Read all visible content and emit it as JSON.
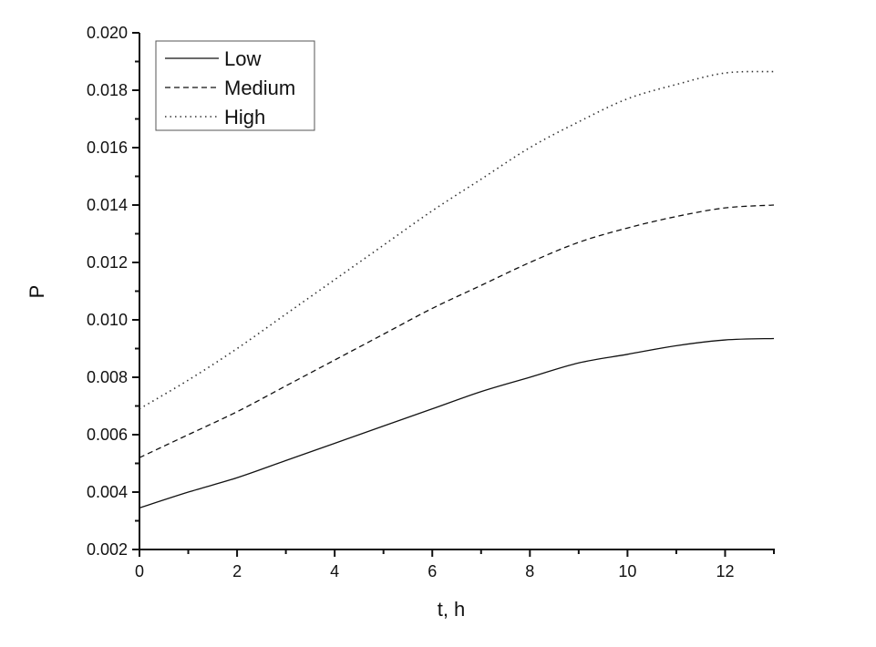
{
  "chart_data": {
    "type": "line",
    "title": "",
    "xlabel": "t, h",
    "ylabel": "P",
    "xlim": [
      0,
      13
    ],
    "ylim": [
      0.002,
      0.02
    ],
    "x_ticks": [
      0,
      2,
      4,
      6,
      8,
      10,
      12
    ],
    "x_tick_labels": [
      "0",
      "2",
      "4",
      "6",
      "8",
      "10",
      "12"
    ],
    "y_ticks": [
      0.002,
      0.004,
      0.006,
      0.008,
      0.01,
      0.012,
      0.014,
      0.016,
      0.018,
      0.02
    ],
    "y_tick_labels": [
      "0.002",
      "0.004",
      "0.006",
      "0.008",
      "0.010",
      "0.012",
      "0.014",
      "0.016",
      "0.018",
      "0.020"
    ],
    "grid": false,
    "legend_position": "upper left",
    "x": [
      0,
      1,
      2,
      3,
      4,
      5,
      6,
      7,
      8,
      9,
      10,
      11,
      12,
      13
    ],
    "series": [
      {
        "name": "Low",
        "style": "solid",
        "values": [
          0.00345,
          0.004,
          0.0045,
          0.0051,
          0.0057,
          0.0063,
          0.0069,
          0.0075,
          0.008,
          0.0085,
          0.0088,
          0.0091,
          0.0093,
          0.00935
        ]
      },
      {
        "name": "Medium",
        "style": "dashed",
        "values": [
          0.0052,
          0.006,
          0.0068,
          0.0077,
          0.0086,
          0.0095,
          0.0104,
          0.0112,
          0.012,
          0.0127,
          0.0132,
          0.0136,
          0.0139,
          0.014
        ]
      },
      {
        "name": "High",
        "style": "dotted",
        "values": [
          0.0069,
          0.0079,
          0.009,
          0.0102,
          0.0114,
          0.0126,
          0.0138,
          0.0149,
          0.016,
          0.0169,
          0.0177,
          0.0182,
          0.0186,
          0.01865
        ]
      }
    ]
  },
  "legend": {
    "items": [
      {
        "label": "Low"
      },
      {
        "label": "Medium"
      },
      {
        "label": "High"
      }
    ]
  },
  "axes": {
    "xlabel": "t, h",
    "ylabel": "P"
  }
}
